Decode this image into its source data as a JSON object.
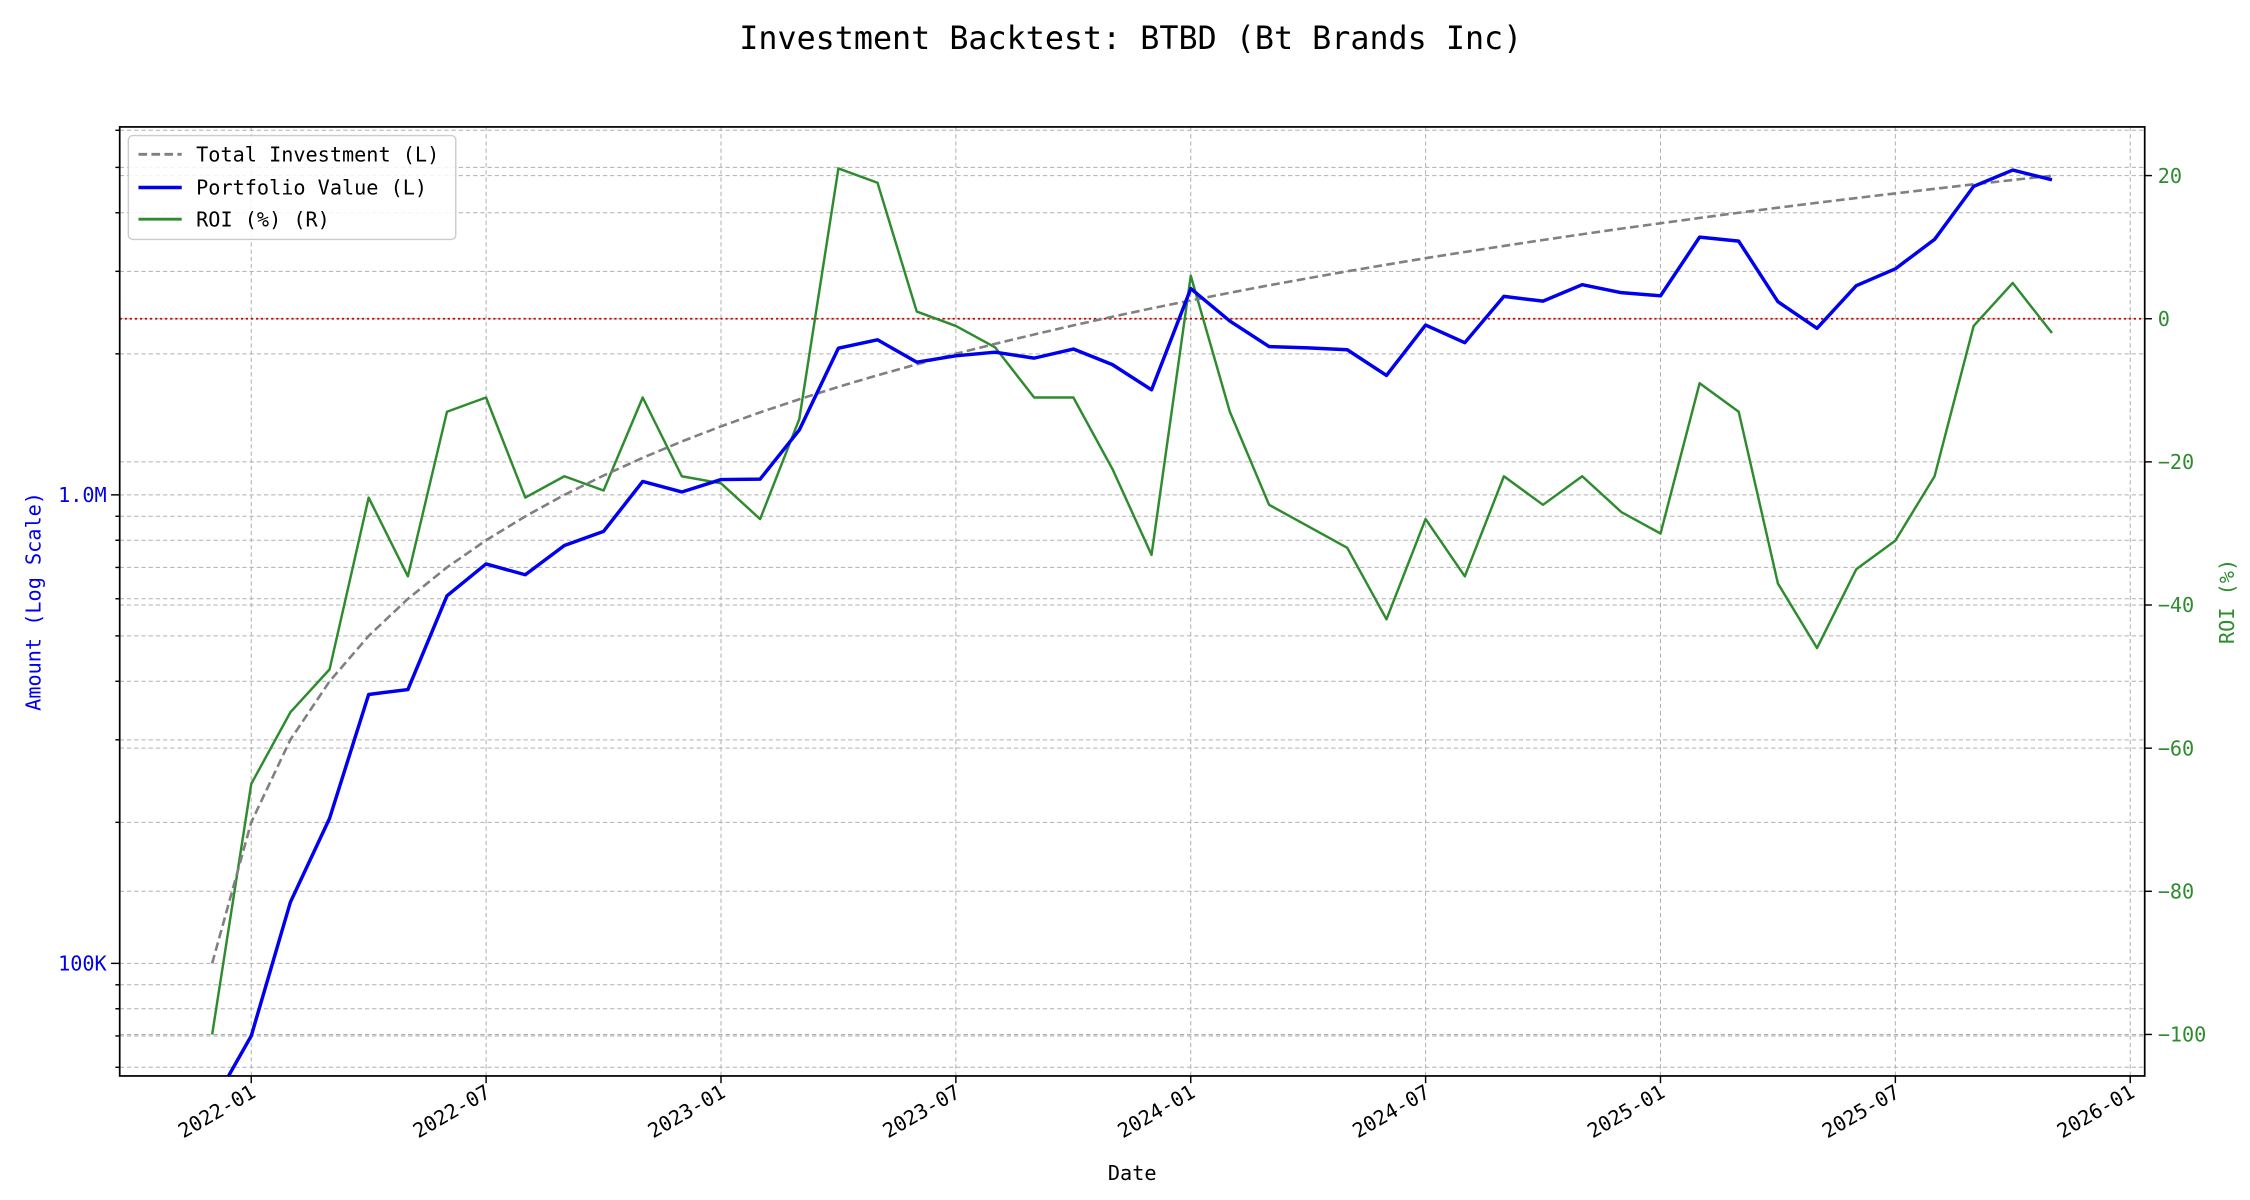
{
  "chart_data": {
    "type": "line",
    "title": "Investment Backtest: BTBD (Bt Brands Inc)",
    "xlabel": "Date",
    "ylabel_left": "Amount (Log Scale)",
    "ylabel_right": "ROI (%)",
    "left_scale": "log",
    "ylim_left": [
      57500,
      6100000
    ],
    "ylim_right": [
      -105.8,
      26.8
    ],
    "xlim": [
      "2021-09",
      "2026-01"
    ],
    "grid": true,
    "legend_position": "top-left",
    "x_ticks": [
      "2022-01",
      "2022-07",
      "2023-01",
      "2023-07",
      "2024-01",
      "2024-07",
      "2025-01",
      "2025-07",
      "2026-01"
    ],
    "y_ticks_left": [
      {
        "value": 100000,
        "label": "100K"
      },
      {
        "value": 1000000,
        "label": "1.0M"
      }
    ],
    "y_ticks_right": [
      {
        "value": 20,
        "label": "20"
      },
      {
        "value": 0,
        "label": "0"
      },
      {
        "value": -20,
        "label": "−20"
      },
      {
        "value": -40,
        "label": "−40"
      },
      {
        "value": -60,
        "label": "−60"
      },
      {
        "value": -80,
        "label": "−80"
      },
      {
        "value": -100,
        "label": "−100"
      }
    ],
    "reference_line": {
      "axis": "right",
      "value": 0,
      "color": "#cc0000",
      "style": "dotted"
    },
    "x": [
      "2021-12",
      "2022-01",
      "2022-02",
      "2022-03",
      "2022-04",
      "2022-05",
      "2022-06",
      "2022-07",
      "2022-08",
      "2022-09",
      "2022-10",
      "2022-11",
      "2022-12",
      "2023-01",
      "2023-02",
      "2023-03",
      "2023-04",
      "2023-05",
      "2023-06",
      "2023-07",
      "2023-08",
      "2023-09",
      "2023-10",
      "2023-11",
      "2023-12",
      "2024-01",
      "2024-02",
      "2024-03",
      "2024-04",
      "2024-05",
      "2024-06",
      "2024-07",
      "2024-08",
      "2024-09",
      "2024-10",
      "2024-11",
      "2024-12",
      "2025-01",
      "2025-02",
      "2025-03",
      "2025-04",
      "2025-05",
      "2025-06",
      "2025-07",
      "2025-08",
      "2025-09",
      "2025-10",
      "2025-11"
    ],
    "series": [
      {
        "name": "Total Investment (L)",
        "axis": "left",
        "color": "#808080",
        "style": "dashed",
        "values": [
          100000,
          200000,
          300000,
          400000,
          500000,
          600000,
          700000,
          800000,
          900000,
          1000000,
          1100000,
          1200000,
          1300000,
          1400000,
          1500000,
          1600000,
          1700000,
          1800000,
          1900000,
          2000000,
          2100000,
          2200000,
          2300000,
          2400000,
          2500000,
          2600000,
          2700000,
          2800000,
          2900000,
          3000000,
          3100000,
          3200000,
          3300000,
          3400000,
          3500000,
          3600000,
          3700000,
          3800000,
          3900000,
          4000000,
          4100000,
          4200000,
          4300000,
          4400000,
          4500000,
          4600000,
          4700000,
          4800000
        ]
      },
      {
        "name": "Portfolio Value (L)",
        "axis": "left",
        "color": "#0000ee",
        "style": "solid",
        "values": [
          0,
          70000,
          135000,
          204000,
          375000,
          384000,
          609000,
          712000,
          675000,
          780000,
          836000,
          1068000,
          1014000,
          1078000,
          1080000,
          1376000,
          2057000,
          2142000,
          1919000,
          1980000,
          2016000,
          1958000,
          2047000,
          1896000,
          1675000,
          2756000,
          2349000,
          2072000,
          2059000,
          2040000,
          1798000,
          2304000,
          2112000,
          2652000,
          2590000,
          2808000,
          2701000,
          2660000,
          3549000,
          3480000,
          2583000,
          2268000,
          2795000,
          3036000,
          3510000,
          4554000,
          4935000,
          4704000
        ]
      },
      {
        "name": "ROI (%) (R)",
        "axis": "right",
        "color": "#2e8b2e",
        "style": "solid",
        "values": [
          -100,
          -65,
          -55,
          -49,
          -25,
          -36,
          -13,
          -11,
          -25,
          -22,
          -24,
          -11,
          -22,
          -23,
          -28,
          -14,
          21,
          19,
          1,
          -1,
          -4,
          -11,
          -11,
          -21,
          -33,
          6,
          -13,
          -26,
          -29,
          -32,
          -42,
          -28,
          -36,
          -22,
          -26,
          -22,
          -27,
          -30,
          -9,
          -13,
          -37,
          -46,
          -35,
          -31,
          -22,
          -1,
          5,
          -2
        ]
      }
    ]
  }
}
